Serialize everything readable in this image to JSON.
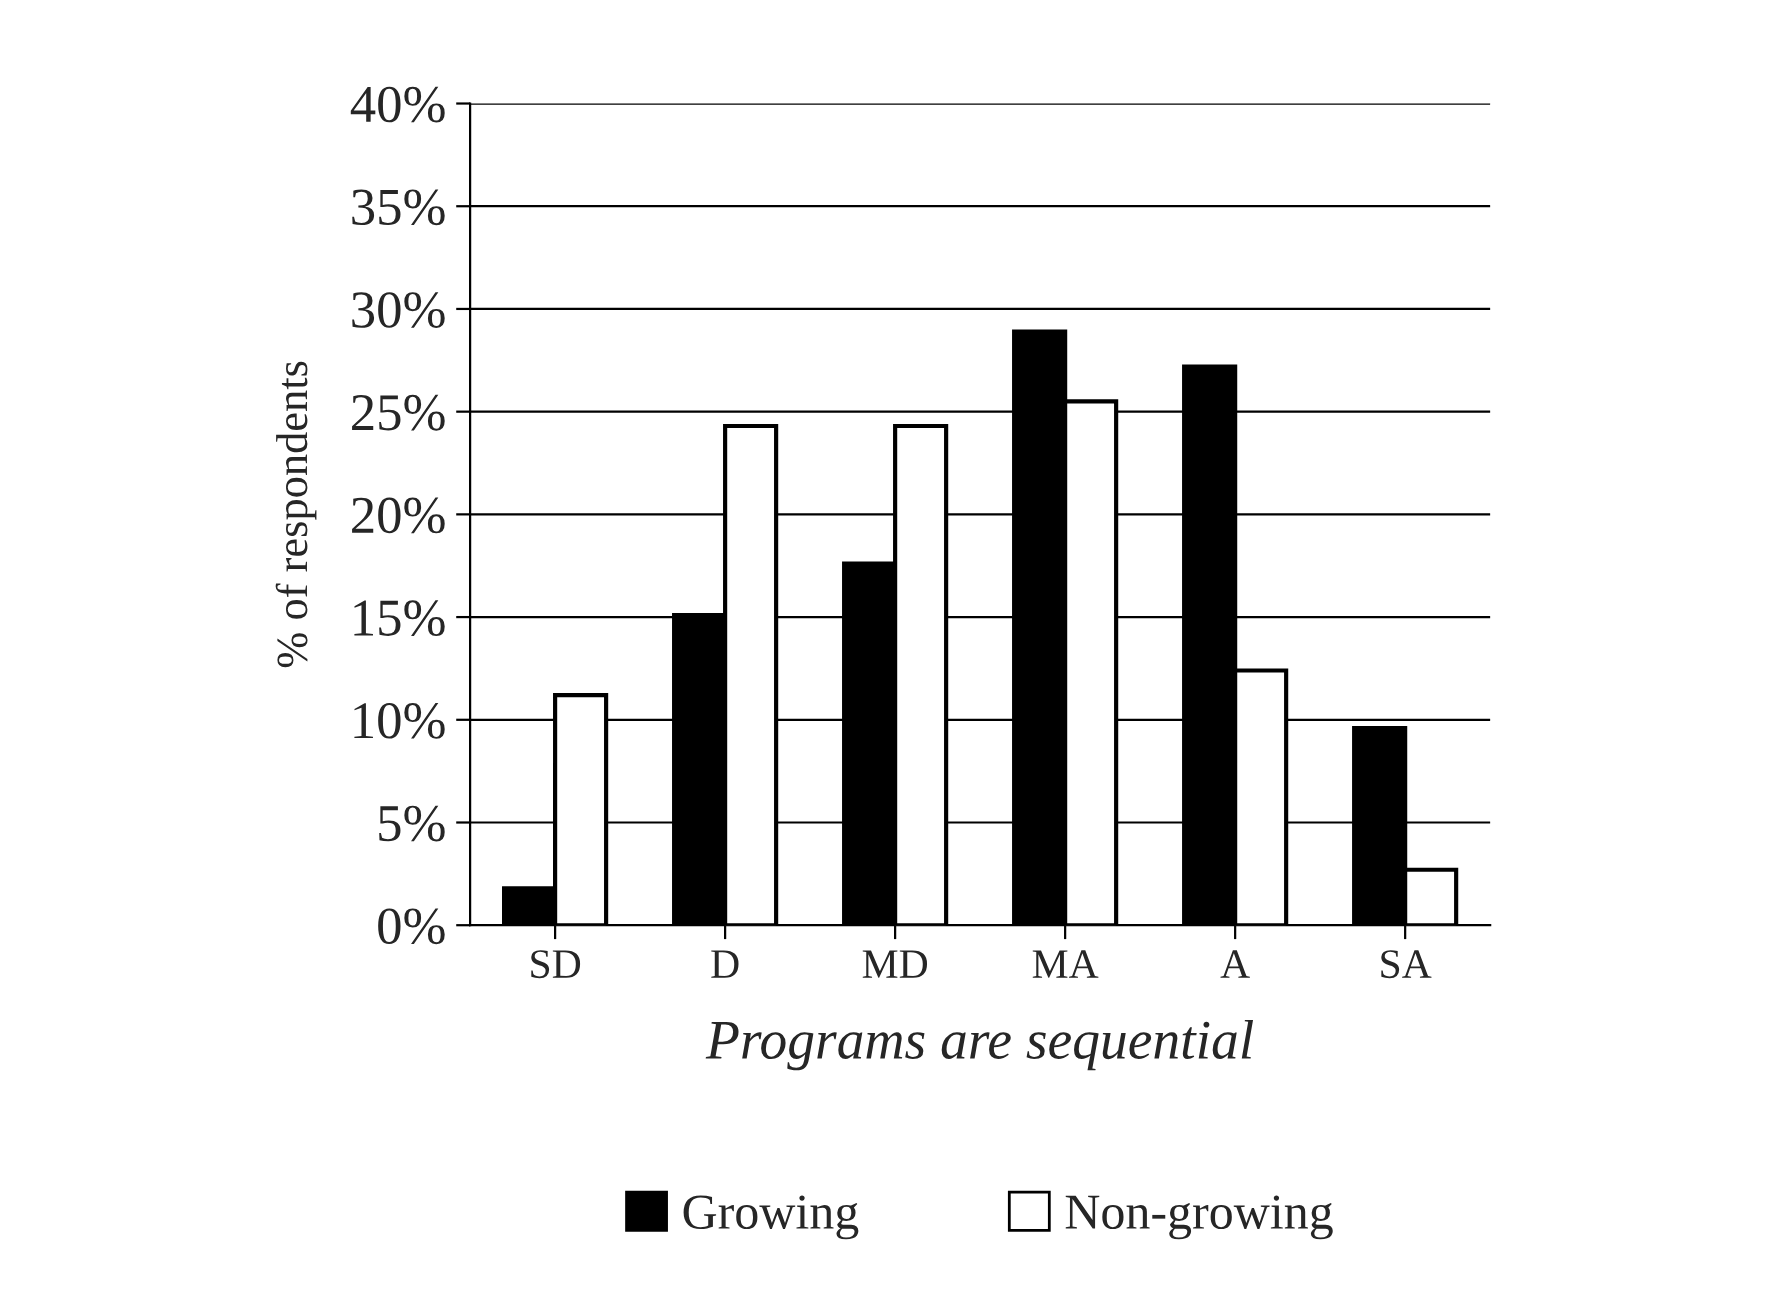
{
  "chart_data": {
    "type": "bar",
    "xlabel": "Programs are sequential",
    "ylabel": "% of respondents",
    "categories": [
      "SD",
      "D",
      "MD",
      "MA",
      "A",
      "SA"
    ],
    "series": [
      {
        "name": "Growing",
        "color": "#000000",
        "values": [
          1.8,
          15.1,
          17.6,
          28.9,
          27.2,
          9.6
        ]
      },
      {
        "name": "Non-growing",
        "color": "#ffffff",
        "values": [
          11.2,
          24.3,
          24.3,
          25.5,
          12.4,
          2.7
        ]
      }
    ],
    "ylim": [
      0,
      40
    ],
    "yticks": [
      {
        "value": 0,
        "label": "0%"
      },
      {
        "value": 5,
        "label": "5%"
      },
      {
        "value": 10,
        "label": "10%"
      },
      {
        "value": 15,
        "label": "15%"
      },
      {
        "value": 20,
        "label": "20%"
      },
      {
        "value": 25,
        "label": "25%"
      },
      {
        "value": 30,
        "label": "30%"
      },
      {
        "value": 35,
        "label": "35%"
      },
      {
        "value": 40,
        "label": "40%"
      }
    ],
    "grid": "y",
    "legend": "bottom"
  }
}
